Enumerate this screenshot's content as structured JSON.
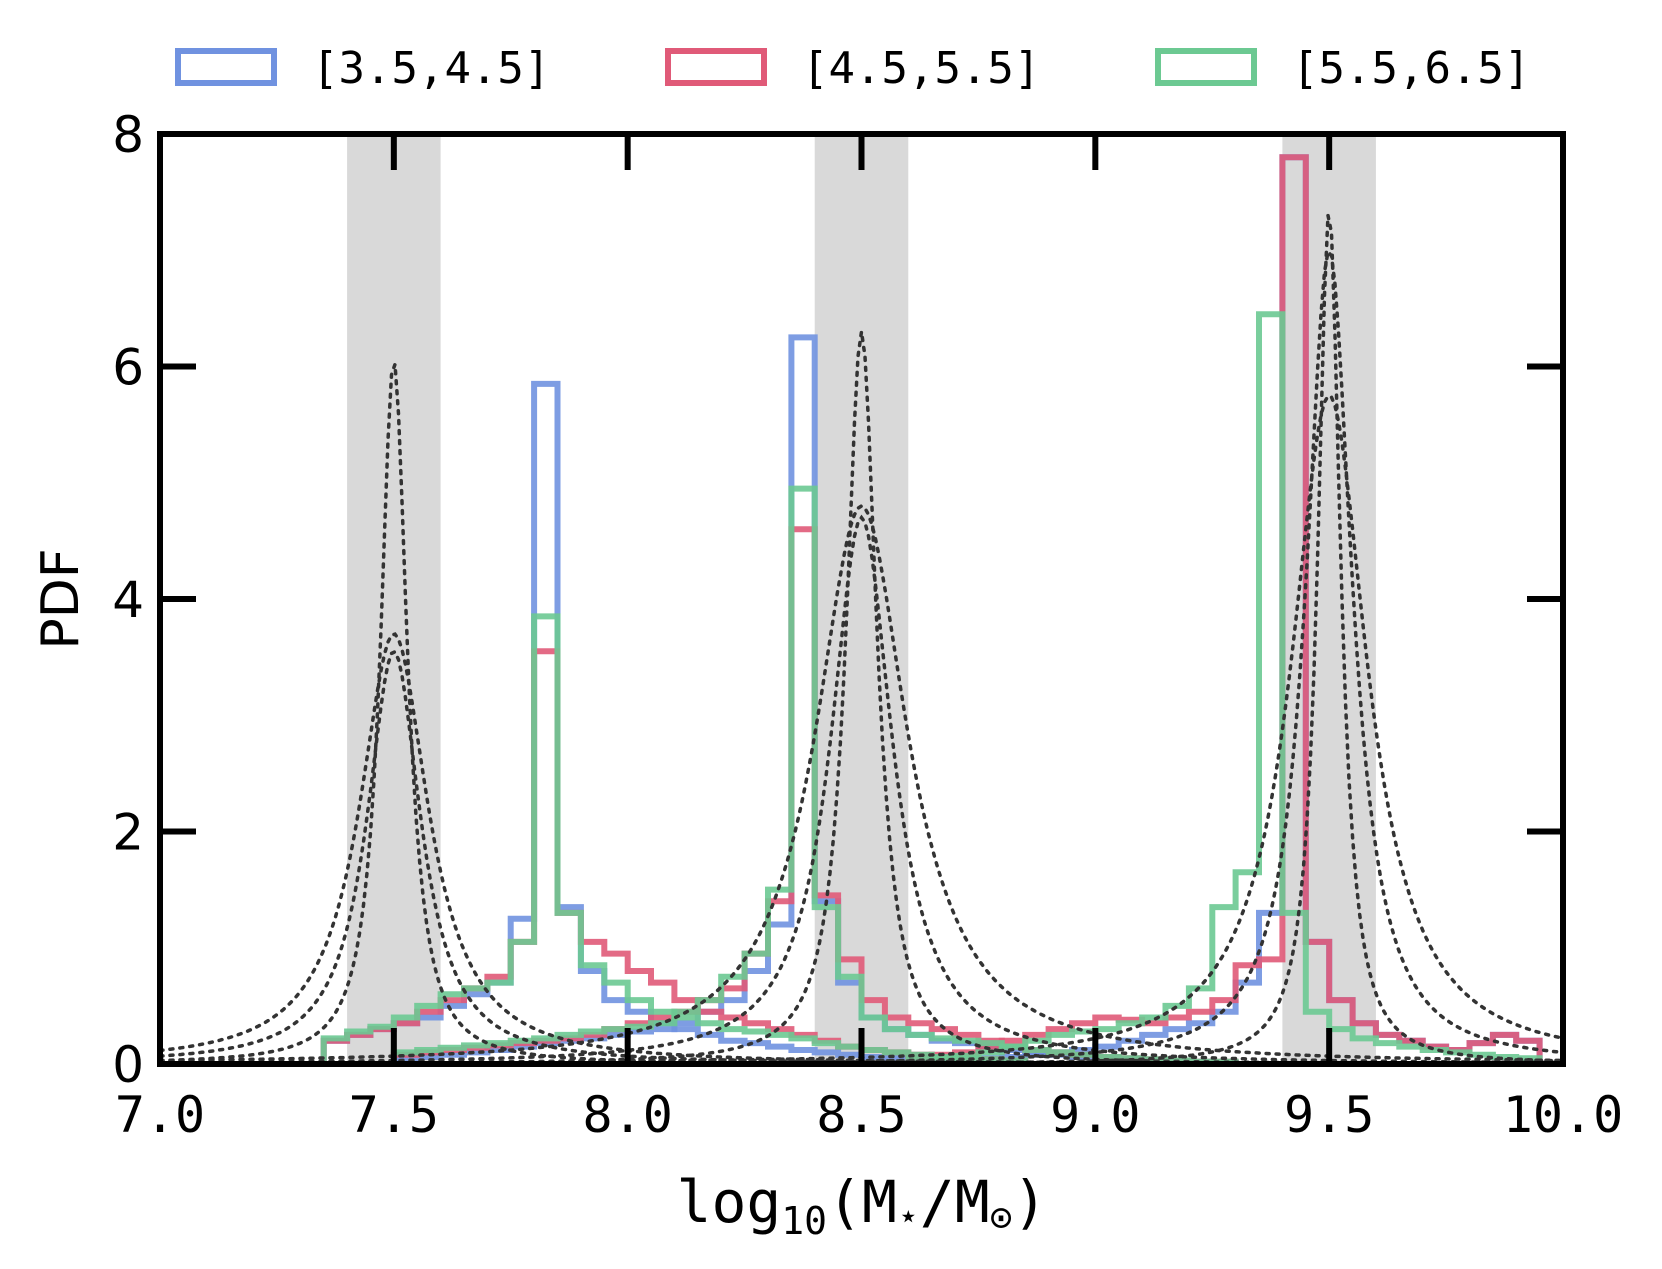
{
  "chart_data": {
    "type": "histogram",
    "title": "",
    "xlabel": {
      "prefix": "log",
      "subscript": "10",
      "rest": "(M",
      "star": "⋆",
      "slash": "/M",
      "sun": "⊙",
      "close": ")"
    },
    "ylabel": "PDF",
    "xlim": [
      7.0,
      10.0
    ],
    "ylim": [
      0,
      8
    ],
    "xticks": [
      7.0,
      7.5,
      8.0,
      8.5,
      9.0,
      9.5,
      10.0
    ],
    "xtick_labels": [
      "7.0",
      "7.5",
      "8.0",
      "8.5",
      "9.0",
      "9.5",
      "10.0"
    ],
    "yticks": [
      0,
      2,
      4,
      6,
      8
    ],
    "ytick_labels": [
      "0",
      "2",
      "4",
      "6",
      "8"
    ],
    "legend_position": "top",
    "shaded_bands": [
      [
        7.4,
        7.6
      ],
      [
        8.4,
        8.6
      ],
      [
        9.4,
        9.6
      ]
    ],
    "band_color": "#d9d9d9",
    "bin_width": 0.05,
    "series": [
      {
        "name": "[3.5,4.5]",
        "color": "#7092e0",
        "peak_7_5": {
          "x0": 7.35,
          "values": [
            0.2,
            0.25,
            0.3,
            0.35,
            0.4,
            0.5,
            0.6,
            0.7,
            1.25,
            5.85,
            1.35,
            0.8,
            0.55,
            0.45,
            0.35,
            0.3,
            0.25,
            0.2,
            0.18,
            0.15,
            0.12,
            0.1,
            0.08,
            0.06,
            0.05,
            0.04,
            0.03,
            0.03,
            0.02,
            0.02
          ]
        },
        "peak_8_5": {
          "x0": 7.5,
          "values": [
            0.05,
            0.06,
            0.08,
            0.1,
            0.12,
            0.15,
            0.18,
            0.2,
            0.22,
            0.25,
            0.28,
            0.3,
            0.35,
            0.45,
            0.55,
            0.8,
            1.2,
            6.25,
            1.4,
            0.7,
            0.4,
            0.3,
            0.25,
            0.2,
            0.18,
            0.15,
            0.12,
            0.1,
            0.08,
            0.06,
            0.05,
            0.04,
            0.03,
            0.02,
            0.02,
            0.01
          ]
        },
        "peak_9_5": {
          "x0": 8.6,
          "values": [
            0.02,
            0.03,
            0.04,
            0.05,
            0.06,
            0.08,
            0.1,
            0.12,
            0.15,
            0.2,
            0.25,
            0.3,
            0.35,
            0.45,
            0.7,
            1.3,
            7.8,
            1.05,
            0.55,
            0.35,
            0.25,
            0.2,
            0.15,
            0.12,
            0.18,
            0.25,
            0.2
          ]
        }
      },
      {
        "name": "[4.5,5.5]",
        "color": "#e05a78",
        "peak_7_5": {
          "x0": 7.35,
          "values": [
            0.2,
            0.25,
            0.3,
            0.35,
            0.45,
            0.55,
            0.65,
            0.75,
            1.05,
            3.55,
            1.3,
            1.05,
            0.95,
            0.8,
            0.7,
            0.55,
            0.45,
            0.4,
            0.35,
            0.3,
            0.25,
            0.2,
            0.15,
            0.12,
            0.1,
            0.08,
            0.06,
            0.05,
            0.04,
            0.03
          ]
        },
        "peak_8_5": {
          "x0": 7.5,
          "values": [
            0.08,
            0.1,
            0.12,
            0.14,
            0.16,
            0.18,
            0.2,
            0.22,
            0.25,
            0.3,
            0.35,
            0.4,
            0.45,
            0.55,
            0.65,
            0.95,
            1.4,
            4.6,
            1.45,
            0.9,
            0.55,
            0.4,
            0.35,
            0.3,
            0.25,
            0.2,
            0.15,
            0.12,
            0.1,
            0.08,
            0.06,
            0.05,
            0.04,
            0.03,
            0.02,
            0.02
          ]
        },
        "peak_9_5": {
          "x0": 8.6,
          "values": [
            0.05,
            0.08,
            0.1,
            0.15,
            0.2,
            0.25,
            0.3,
            0.35,
            0.4,
            0.38,
            0.35,
            0.4,
            0.45,
            0.55,
            0.85,
            0.9,
            7.8,
            1.05,
            0.55,
            0.35,
            0.25,
            0.2,
            0.15,
            0.12,
            0.18,
            0.25,
            0.2
          ]
        }
      },
      {
        "name": "[5.5,6.5]",
        "color": "#6cc992",
        "peak_7_5": {
          "x0": 7.35,
          "values": [
            0.22,
            0.28,
            0.32,
            0.4,
            0.5,
            0.6,
            0.65,
            0.7,
            1.05,
            3.85,
            1.3,
            0.85,
            0.7,
            0.55,
            0.45,
            0.4,
            0.35,
            0.3,
            0.28,
            0.25,
            0.22,
            0.18,
            0.15,
            0.12,
            0.1,
            0.08,
            0.06,
            0.05,
            0.04,
            0.03
          ]
        },
        "peak_8_5": {
          "x0": 7.5,
          "values": [
            0.1,
            0.12,
            0.14,
            0.16,
            0.18,
            0.2,
            0.22,
            0.25,
            0.28,
            0.3,
            0.32,
            0.35,
            0.45,
            0.55,
            0.75,
            0.95,
            1.5,
            4.95,
            1.35,
            0.75,
            0.4,
            0.3,
            0.25,
            0.22,
            0.2,
            0.18,
            0.15,
            0.12,
            0.1,
            0.08,
            0.06,
            0.05,
            0.04,
            0.03,
            0.02,
            0.02
          ]
        },
        "peak_9_5": {
          "x0": 8.6,
          "values": [
            0.03,
            0.05,
            0.07,
            0.1,
            0.15,
            0.2,
            0.25,
            0.28,
            0.3,
            0.35,
            0.4,
            0.5,
            0.65,
            1.35,
            1.65,
            6.45,
            1.3,
            0.45,
            0.3,
            0.22,
            0.18,
            0.15,
            0.12,
            0.1,
            0.08,
            0.06,
            0.05
          ]
        }
      }
    ],
    "fit_curves": {
      "style": "dotted",
      "color": "#333333",
      "curves": [
        {
          "center": 7.5,
          "amplitude": 6.05,
          "width": 0.035
        },
        {
          "center": 7.5,
          "amplitude": 3.55,
          "width": 0.07
        },
        {
          "center": 7.5,
          "amplitude": 3.7,
          "width": 0.09
        },
        {
          "center": 8.5,
          "amplitude": 6.3,
          "width": 0.04
        },
        {
          "center": 8.5,
          "amplitude": 4.7,
          "width": 0.08
        },
        {
          "center": 8.5,
          "amplitude": 4.8,
          "width": 0.12
        },
        {
          "center": 9.5,
          "amplitude": 7.35,
          "width": 0.03
        },
        {
          "center": 9.5,
          "amplitude": 7.0,
          "width": 0.06
        },
        {
          "center": 9.5,
          "amplitude": 5.75,
          "width": 0.1
        }
      ]
    }
  }
}
